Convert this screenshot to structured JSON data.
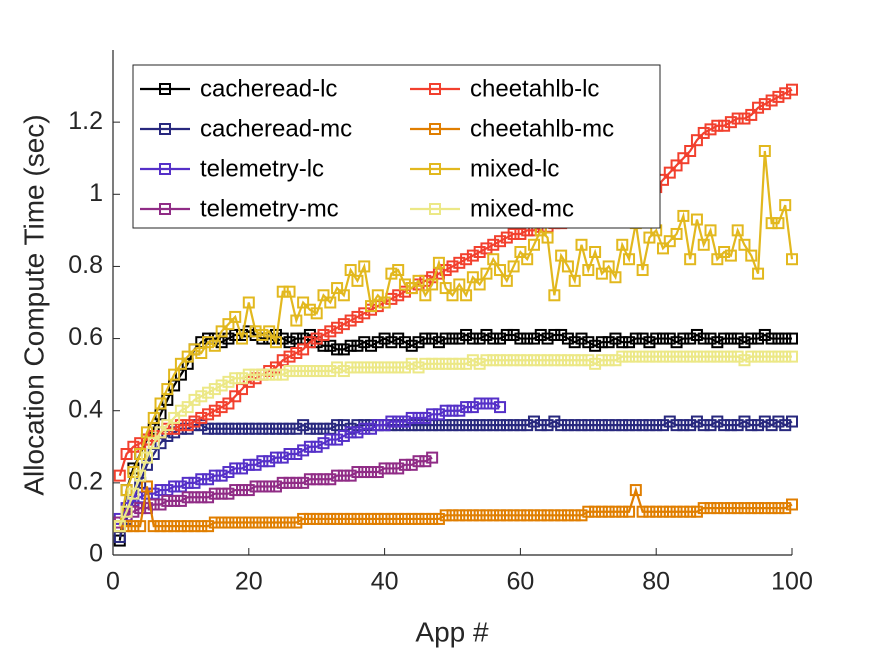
{
  "chart_data": {
    "type": "line",
    "x_label": "App #",
    "y_label": "Allocation Compute Time (sec)",
    "xlim": [
      0,
      100
    ],
    "ylim": [
      0,
      1.4
    ],
    "xticks": [
      0,
      20,
      40,
      60,
      80,
      100
    ],
    "yticks": [
      0,
      0.2,
      0.4,
      0.6,
      0.8,
      1,
      1.2
    ],
    "legend": "northwest",
    "legend_columns": 2,
    "marker": "square",
    "x": [
      1,
      2,
      3,
      4,
      5,
      6,
      7,
      8,
      9,
      10,
      11,
      12,
      13,
      14,
      15,
      16,
      17,
      18,
      19,
      20,
      21,
      22,
      23,
      24,
      25,
      26,
      27,
      28,
      29,
      30,
      31,
      32,
      33,
      34,
      35,
      36,
      37,
      38,
      39,
      40,
      41,
      42,
      43,
      44,
      45,
      46,
      47,
      48,
      49,
      50,
      51,
      52,
      53,
      54,
      55,
      56,
      57,
      58,
      59,
      60,
      61,
      62,
      63,
      64,
      65,
      66,
      67,
      68,
      69,
      70,
      71,
      72,
      73,
      74,
      75,
      76,
      77,
      78,
      79,
      80,
      81,
      82,
      83,
      84,
      85,
      86,
      87,
      88,
      89,
      90,
      91,
      92,
      93,
      94,
      95,
      96,
      97,
      98,
      99,
      100
    ],
    "series": [
      {
        "name": "cacheread-lc",
        "color": "#000000",
        "values": [
          0.04,
          0.18,
          0.24,
          0.28,
          0.32,
          0.35,
          0.39,
          0.43,
          0.47,
          0.5,
          0.53,
          0.57,
          0.59,
          0.6,
          0.6,
          0.59,
          0.6,
          0.61,
          0.61,
          0.62,
          0.61,
          0.6,
          0.6,
          0.61,
          0.6,
          0.59,
          0.6,
          0.6,
          0.61,
          0.59,
          0.58,
          0.58,
          0.57,
          0.57,
          0.58,
          0.58,
          0.59,
          0.58,
          0.59,
          0.6,
          0.59,
          0.6,
          0.59,
          0.58,
          0.59,
          0.6,
          0.6,
          0.59,
          0.6,
          0.6,
          0.6,
          0.61,
          0.6,
          0.6,
          0.61,
          0.6,
          0.6,
          0.61,
          0.61,
          0.6,
          0.6,
          0.6,
          0.61,
          0.6,
          0.61,
          0.61,
          0.6,
          0.59,
          0.6,
          0.59,
          0.58,
          0.59,
          0.59,
          0.6,
          0.59,
          0.59,
          0.6,
          0.6,
          0.59,
          0.6,
          0.6,
          0.6,
          0.59,
          0.6,
          0.6,
          0.61,
          0.6,
          0.6,
          0.59,
          0.6,
          0.6,
          0.6,
          0.59,
          0.6,
          0.6,
          0.61,
          0.6,
          0.6,
          0.6,
          0.6
        ]
      },
      {
        "name": "cacheread-mc",
        "color": "#28287e",
        "values": [
          0.05,
          0.1,
          0.15,
          0.2,
          0.25,
          0.28,
          0.31,
          0.33,
          0.34,
          0.35,
          0.35,
          0.36,
          0.36,
          0.35,
          0.35,
          0.35,
          0.35,
          0.35,
          0.35,
          0.35,
          0.35,
          0.35,
          0.35,
          0.35,
          0.35,
          0.35,
          0.35,
          0.36,
          0.35,
          0.35,
          0.35,
          0.35,
          0.36,
          0.36,
          0.35,
          0.36,
          0.36,
          0.36,
          0.36,
          0.36,
          0.36,
          0.36,
          0.36,
          0.36,
          0.36,
          0.36,
          0.36,
          0.36,
          0.36,
          0.36,
          0.36,
          0.36,
          0.36,
          0.36,
          0.36,
          0.36,
          0.36,
          0.36,
          0.36,
          0.36,
          0.36,
          0.37,
          0.36,
          0.36,
          0.37,
          0.36,
          0.36,
          0.36,
          0.36,
          0.36,
          0.36,
          0.36,
          0.36,
          0.36,
          0.36,
          0.36,
          0.36,
          0.36,
          0.36,
          0.36,
          0.36,
          0.37,
          0.36,
          0.36,
          0.36,
          0.37,
          0.36,
          0.36,
          0.37,
          0.36,
          0.36,
          0.36,
          0.37,
          0.36,
          0.36,
          0.37,
          0.36,
          0.37,
          0.36,
          0.37
        ]
      },
      {
        "name": "telemetry-lc",
        "color": "#5530c8",
        "values": [
          0.1,
          0.13,
          0.15,
          0.16,
          0.17,
          0.17,
          0.18,
          0.18,
          0.19,
          0.19,
          0.2,
          0.2,
          0.21,
          0.21,
          0.22,
          0.22,
          0.23,
          0.24,
          0.24,
          0.25,
          0.25,
          0.26,
          0.26,
          0.27,
          0.27,
          0.28,
          0.28,
          0.29,
          0.3,
          0.3,
          0.31,
          0.32,
          0.32,
          0.33,
          0.34,
          0.34,
          0.35,
          0.35,
          0.36,
          0.36,
          0.37,
          0.37,
          0.37,
          0.38,
          0.38,
          0.38,
          0.39,
          0.39,
          0.4,
          0.4,
          0.4,
          0.41,
          0.41,
          0.42,
          0.42,
          0.42,
          0.41,
          null,
          null,
          null,
          null,
          null,
          null,
          null,
          null,
          null,
          null,
          null,
          null,
          null,
          null,
          null,
          null,
          null,
          null,
          null,
          null,
          null,
          null,
          null,
          null,
          null,
          null,
          null,
          null,
          null,
          null,
          null,
          null,
          null,
          null,
          null,
          null,
          null,
          null,
          null,
          null,
          null,
          null,
          null
        ]
      },
      {
        "name": "telemetry-mc",
        "color": "#902c86",
        "values": [
          0.09,
          0.11,
          0.12,
          0.13,
          0.13,
          0.14,
          0.14,
          0.15,
          0.15,
          0.15,
          0.16,
          0.16,
          0.16,
          0.16,
          0.17,
          0.17,
          0.17,
          0.18,
          0.18,
          0.18,
          0.19,
          0.19,
          0.19,
          0.19,
          0.2,
          0.2,
          0.2,
          0.2,
          0.21,
          0.21,
          0.21,
          0.21,
          0.22,
          0.22,
          0.22,
          0.23,
          0.23,
          0.23,
          0.23,
          0.24,
          0.24,
          0.24,
          0.25,
          0.25,
          0.26,
          0.26,
          0.27,
          null,
          null,
          null,
          null,
          null,
          null,
          null,
          null,
          null,
          null,
          null,
          null,
          null,
          null,
          null,
          null,
          null,
          null,
          null,
          null,
          null,
          null,
          null,
          null,
          null,
          null,
          null,
          null,
          null,
          null,
          null,
          null,
          null,
          null,
          null,
          null,
          null,
          null,
          null,
          null,
          null,
          null,
          null,
          null,
          null,
          null,
          null,
          null,
          null,
          null,
          null,
          null,
          null
        ]
      },
      {
        "name": "cheetahlb-lc",
        "color": "#f2402e",
        "values": [
          0.22,
          0.28,
          0.3,
          0.31,
          0.32,
          0.33,
          0.34,
          0.35,
          0.35,
          0.36,
          0.36,
          0.37,
          0.38,
          0.39,
          0.4,
          0.41,
          0.42,
          0.44,
          0.46,
          0.48,
          0.49,
          0.5,
          0.51,
          0.52,
          0.54,
          0.55,
          0.56,
          0.57,
          0.59,
          0.6,
          0.61,
          0.62,
          0.63,
          0.64,
          0.65,
          0.66,
          0.67,
          0.68,
          0.69,
          0.7,
          0.71,
          0.72,
          0.73,
          0.74,
          0.75,
          0.76,
          0.77,
          0.78,
          0.79,
          0.8,
          0.81,
          0.82,
          0.83,
          0.84,
          0.85,
          0.86,
          0.87,
          0.88,
          0.89,
          0.89,
          0.9,
          0.9,
          0.91,
          0.91,
          0.92,
          0.92,
          0.93,
          0.93,
          0.94,
          0.94,
          0.95,
          0.95,
          0.96,
          0.96,
          0.96,
          0.97,
          0.97,
          0.97,
          0.98,
          1.02,
          1.04,
          1.06,
          1.08,
          1.1,
          1.12,
          1.15,
          1.17,
          1.18,
          1.19,
          1.19,
          1.2,
          1.21,
          1.21,
          1.22,
          1.24,
          1.25,
          1.26,
          1.27,
          1.28,
          1.29
        ]
      },
      {
        "name": "cheetahlb-mc",
        "color": "#e07e00",
        "values": [
          0.08,
          0.08,
          0.08,
          0.08,
          0.19,
          0.08,
          0.08,
          0.08,
          0.08,
          0.08,
          0.08,
          0.08,
          0.08,
          0.08,
          0.09,
          0.09,
          0.09,
          0.09,
          0.09,
          0.09,
          0.09,
          0.09,
          0.09,
          0.09,
          0.09,
          0.09,
          0.09,
          0.1,
          0.1,
          0.1,
          0.1,
          0.1,
          0.1,
          0.1,
          0.1,
          0.1,
          0.1,
          0.1,
          0.1,
          0.1,
          0.1,
          0.1,
          0.1,
          0.1,
          0.1,
          0.1,
          0.1,
          0.1,
          0.11,
          0.11,
          0.11,
          0.11,
          0.11,
          0.11,
          0.11,
          0.11,
          0.11,
          0.11,
          0.11,
          0.11,
          0.11,
          0.11,
          0.11,
          0.11,
          0.11,
          0.11,
          0.11,
          0.11,
          0.11,
          0.12,
          0.12,
          0.12,
          0.12,
          0.12,
          0.12,
          0.12,
          0.18,
          0.12,
          0.12,
          0.12,
          0.12,
          0.12,
          0.12,
          0.12,
          0.12,
          0.12,
          0.13,
          0.13,
          0.13,
          0.13,
          0.13,
          0.13,
          0.13,
          0.13,
          0.13,
          0.13,
          0.13,
          0.13,
          0.13,
          0.14
        ]
      },
      {
        "name": "mixed-lc",
        "color": "#e2b81e",
        "values": [
          0.08,
          0.18,
          0.23,
          0.28,
          0.34,
          0.38,
          0.42,
          0.46,
          0.5,
          0.53,
          0.55,
          0.57,
          0.56,
          0.59,
          0.58,
          0.62,
          0.64,
          0.66,
          0.6,
          0.7,
          0.62,
          0.61,
          0.62,
          0.59,
          0.73,
          0.73,
          0.65,
          0.7,
          0.68,
          0.67,
          0.72,
          0.7,
          0.74,
          0.72,
          0.79,
          0.76,
          0.8,
          0.69,
          0.72,
          0.7,
          0.78,
          0.79,
          0.75,
          0.74,
          0.76,
          0.72,
          0.75,
          0.81,
          0.74,
          0.72,
          0.75,
          0.72,
          0.77,
          0.75,
          0.78,
          0.82,
          0.79,
          0.76,
          0.8,
          0.84,
          0.82,
          0.86,
          0.9,
          0.88,
          0.72,
          0.83,
          0.8,
          0.76,
          0.86,
          0.79,
          0.84,
          0.78,
          0.8,
          0.77,
          0.86,
          0.82,
          0.92,
          0.79,
          0.88,
          0.9,
          0.85,
          0.87,
          0.89,
          0.94,
          0.82,
          0.93,
          0.86,
          0.9,
          0.82,
          0.84,
          0.83,
          0.9,
          0.86,
          0.83,
          0.78,
          1.12,
          0.92,
          0.92,
          0.97,
          0.82
        ]
      },
      {
        "name": "mixed-mc",
        "color": "#ece886",
        "values": [
          0.08,
          0.12,
          0.17,
          0.22,
          0.27,
          0.31,
          0.34,
          0.36,
          0.38,
          0.4,
          0.41,
          0.43,
          0.44,
          0.45,
          0.46,
          0.47,
          0.48,
          0.49,
          0.49,
          0.5,
          0.5,
          0.5,
          0.5,
          0.5,
          0.5,
          0.51,
          0.51,
          0.51,
          0.51,
          0.51,
          0.51,
          0.51,
          0.52,
          0.51,
          0.52,
          0.52,
          0.52,
          0.52,
          0.52,
          0.52,
          0.52,
          0.52,
          0.52,
          0.53,
          0.52,
          0.53,
          0.53,
          0.53,
          0.53,
          0.53,
          0.53,
          0.53,
          0.54,
          0.53,
          0.54,
          0.54,
          0.54,
          0.54,
          0.54,
          0.54,
          0.54,
          0.54,
          0.54,
          0.54,
          0.54,
          0.54,
          0.54,
          0.54,
          0.54,
          0.54,
          0.53,
          0.54,
          0.54,
          0.54,
          0.55,
          0.55,
          0.55,
          0.55,
          0.55,
          0.55,
          0.55,
          0.55,
          0.55,
          0.55,
          0.55,
          0.55,
          0.55,
          0.55,
          0.55,
          0.55,
          0.55,
          0.55,
          0.54,
          0.55,
          0.55,
          0.55,
          0.55,
          0.55,
          0.55,
          0.55
        ]
      }
    ]
  }
}
